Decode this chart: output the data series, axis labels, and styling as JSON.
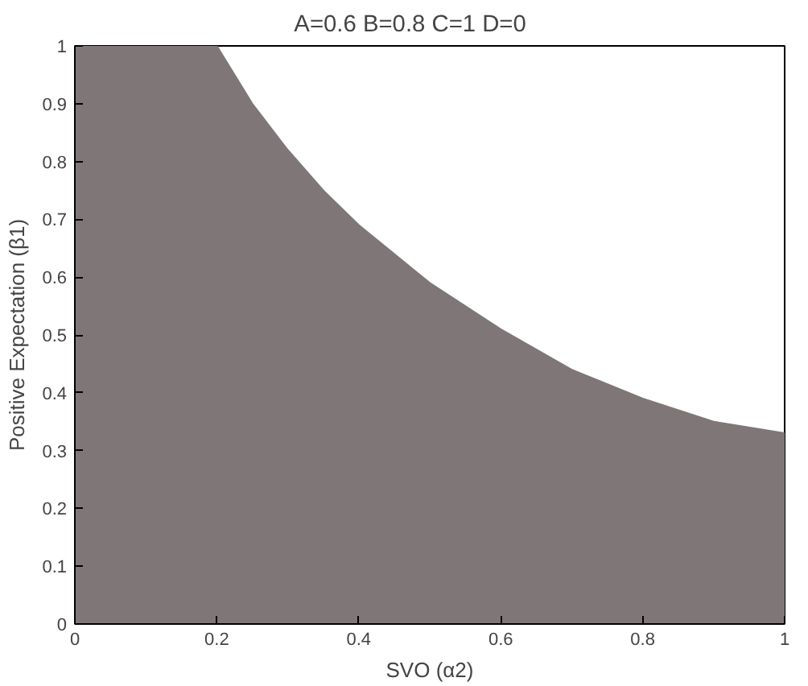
{
  "chart_data": {
    "type": "area",
    "title": "A=0.6   B=0.8   C=1   D=0",
    "xlabel": "SVO (α2)",
    "ylabel": "Positive Expectation (β1)",
    "x": [
      0,
      0.2,
      0.25,
      0.3,
      0.35,
      0.4,
      0.5,
      0.6,
      0.7,
      0.8,
      0.9,
      1
    ],
    "series": [
      {
        "color": "#7f7777",
        "values": [
          1,
          1,
          0.9,
          0.82,
          0.75,
          0.69,
          0.59,
          0.51,
          0.44,
          0.39,
          0.35,
          0.33
        ]
      }
    ],
    "xlim": [
      0,
      1
    ],
    "ylim": [
      0,
      1
    ],
    "xticks": [
      0,
      0.2,
      0.4,
      0.6,
      0.8,
      1
    ],
    "yticks": [
      0,
      0.1,
      0.2,
      0.3,
      0.4,
      0.5,
      0.6,
      0.7,
      0.8,
      0.9,
      1
    ],
    "grid": false
  }
}
